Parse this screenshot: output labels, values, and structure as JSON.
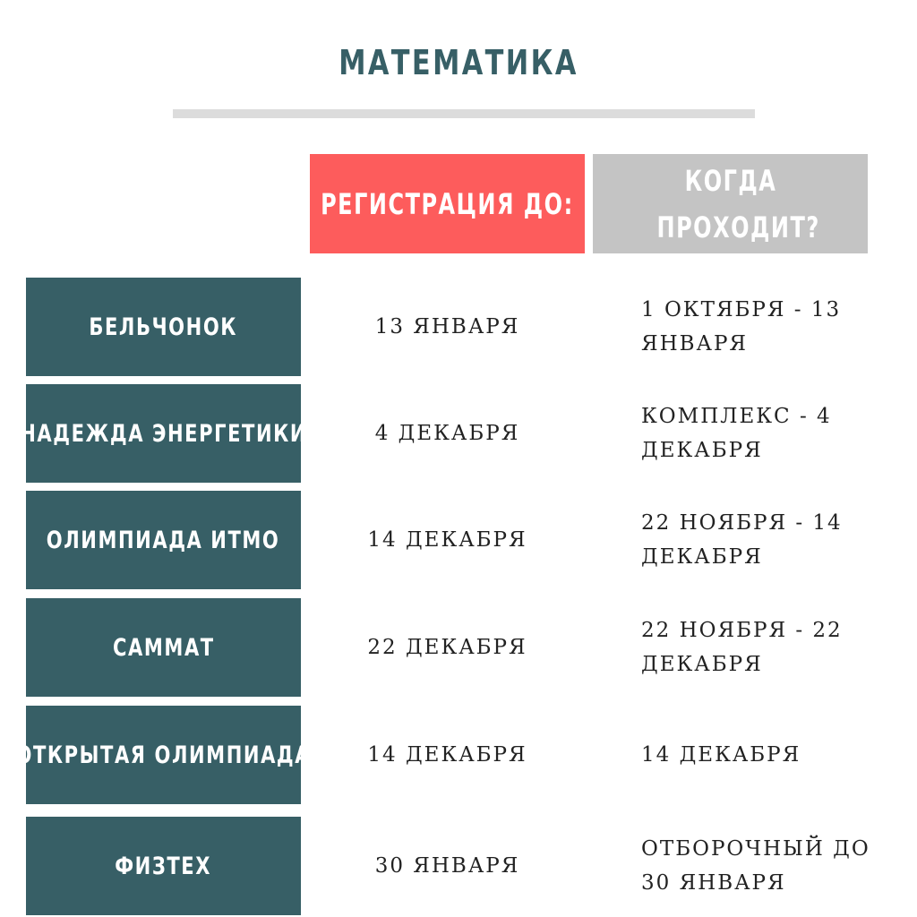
{
  "header": {
    "title": "МАТЕМАТИКА"
  },
  "table": {
    "columns": [
      "РЕГИСТРАЦИЯ ДО:",
      "КОГДА ПРОХОДИТ?"
    ],
    "rows": [
      [
        "БЕЛЬЧОНОК",
        "13 ЯНВАРЯ",
        "1 ОКТЯБРЯ - 13 ЯНВАРЯ"
      ],
      [
        "НАДЕЖДА ЭНЕРГЕТИКИ",
        "4 ДЕКАБРЯ",
        "КОМПЛЕКС - 4 ДЕКАБРЯ"
      ],
      [
        "ОЛИМПИАДА ИТМО",
        "14 ДЕКАБРЯ",
        "22 НОЯБРЯ - 14 ДЕКАБРЯ"
      ],
      [
        "САММАТ",
        "22 ДЕКАБРЯ",
        "22 НОЯБРЯ - 22 ДЕКАБРЯ"
      ],
      [
        "ОТКРЫТАЯ ОЛИМПИАДА",
        "14 ДЕКАБРЯ",
        "14 ДЕКАБРЯ"
      ],
      [
        "ФИЗТЕХ",
        "30 ЯНВАРЯ",
        "ОТБОРОЧНЫЙ ДО 30 ЯНВАРЯ"
      ]
    ]
  }
}
